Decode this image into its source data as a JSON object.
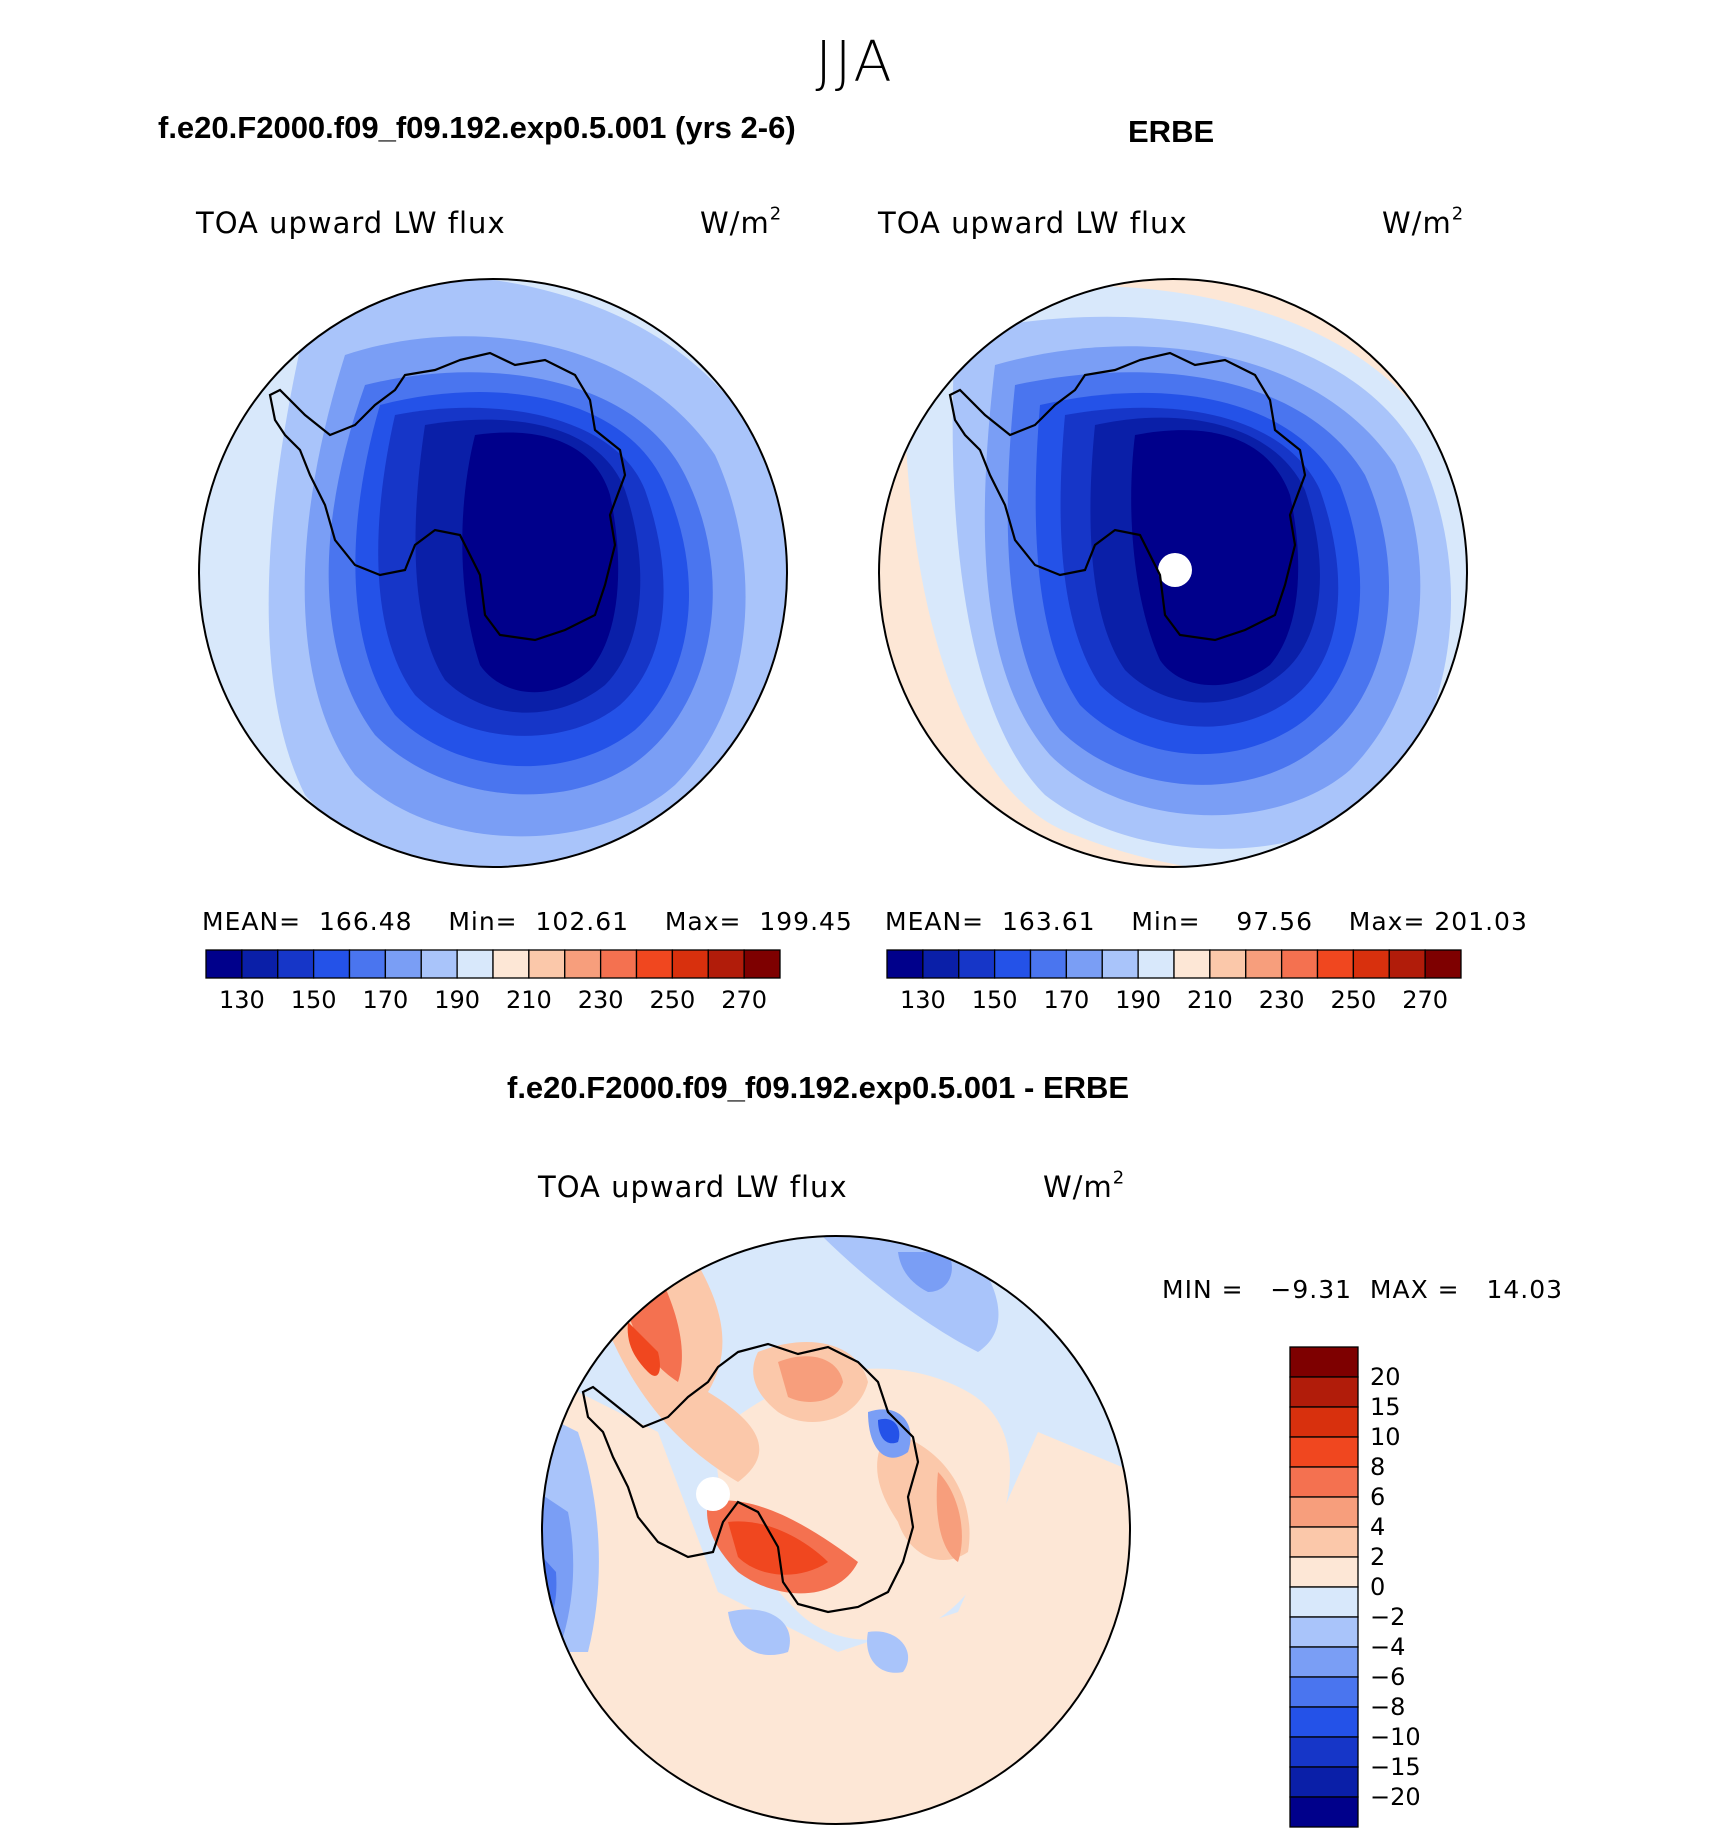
{
  "season": "JJA",
  "panels": [
    {
      "title": "f.e20.F2000.f09_f09.192.exp0.5.001 (yrs 2-6)",
      "variable": "TOA upward LW flux",
      "units_base": "W/m",
      "units_exp": "2",
      "stats": {
        "mean_label": "MEAN=",
        "mean": "166.48",
        "min_label": "Min=",
        "min": "102.61",
        "max_label": "Max=",
        "max": "199.45"
      }
    },
    {
      "title": "ERBE",
      "variable": "TOA upward LW flux",
      "units_base": "W/m",
      "units_exp": "2",
      "stats": {
        "mean_label": "MEAN=",
        "mean": "163.61",
        "min_label": "Min=",
        "min": "97.56",
        "max_label": "Max=",
        "max": "201.03"
      }
    }
  ],
  "diff_panel": {
    "title": "f.e20.F2000.f09_f09.192.exp0.5.001 - ERBE",
    "variable": "TOA upward LW flux",
    "units_base": "W/m",
    "units_exp": "2",
    "min_label": "MIN =",
    "min": "−9.31",
    "max_label": "MAX =",
    "max": "14.03"
  },
  "chart_data": [
    {
      "type": "heatmap",
      "projection": "south-polar stereographic",
      "title": "f.e20.F2000.f09_f09.192.exp0.5.001 (yrs 2-6)",
      "variable": "TOA upward LW flux",
      "units": "W/m2",
      "mean": 166.48,
      "min": 102.61,
      "max": 199.45,
      "contour_levels": [
        130,
        140,
        150,
        160,
        170,
        180,
        190,
        200,
        210,
        220,
        230,
        240,
        250,
        260,
        270
      ],
      "colorbar_tick_labels": [
        "130",
        "150",
        "170",
        "190",
        "210",
        "230",
        "250",
        "270"
      ],
      "colors": [
        "#00008b",
        "#0a1fa8",
        "#1636c8",
        "#2452e8",
        "#4a75ef",
        "#7a9ef5",
        "#a9c4fa",
        "#d8e8fb",
        "#fde7d6",
        "#fbc8aa",
        "#f79e7c",
        "#f47150",
        "#f0471f",
        "#d8300d",
        "#b11c0a",
        "#7e0000"
      ]
    },
    {
      "type": "heatmap",
      "projection": "south-polar stereographic",
      "title": "ERBE",
      "variable": "TOA upward LW flux",
      "units": "W/m2",
      "mean": 163.61,
      "min": 97.56,
      "max": 201.03,
      "contour_levels": [
        130,
        140,
        150,
        160,
        170,
        180,
        190,
        200,
        210,
        220,
        230,
        240,
        250,
        260,
        270
      ],
      "colorbar_tick_labels": [
        "130",
        "150",
        "170",
        "190",
        "210",
        "230",
        "250",
        "270"
      ],
      "colors": [
        "#00008b",
        "#0a1fa8",
        "#1636c8",
        "#2452e8",
        "#4a75ef",
        "#7a9ef5",
        "#a9c4fa",
        "#d8e8fb",
        "#fde7d6",
        "#fbc8aa",
        "#f79e7c",
        "#f47150",
        "#f0471f",
        "#d8300d",
        "#b11c0a",
        "#7e0000"
      ]
    },
    {
      "type": "heatmap",
      "projection": "south-polar stereographic",
      "title": "f.e20.F2000.f09_f09.192.exp0.5.001 - ERBE",
      "variable": "TOA upward LW flux",
      "units": "W/m2",
      "min": -9.31,
      "max": 14.03,
      "contour_levels": [
        -20,
        -15,
        -10,
        -8,
        -6,
        -4,
        -2,
        0,
        2,
        4,
        6,
        8,
        10,
        15,
        20
      ],
      "colorbar_tick_labels": [
        "20",
        "15",
        "10",
        "8",
        "6",
        "4",
        "2",
        "0",
        "−2",
        "−4",
        "−6",
        "−8",
        "−10",
        "−15",
        "−20"
      ],
      "colors": [
        "#00008b",
        "#0a1fa8",
        "#1636c8",
        "#2452e8",
        "#4a75ef",
        "#7a9ef5",
        "#a9c4fa",
        "#d8e8fb",
        "#fde7d6",
        "#fbc8aa",
        "#f79e7c",
        "#f47150",
        "#f0471f",
        "#d8300d",
        "#b11c0a",
        "#7e0000"
      ]
    }
  ]
}
